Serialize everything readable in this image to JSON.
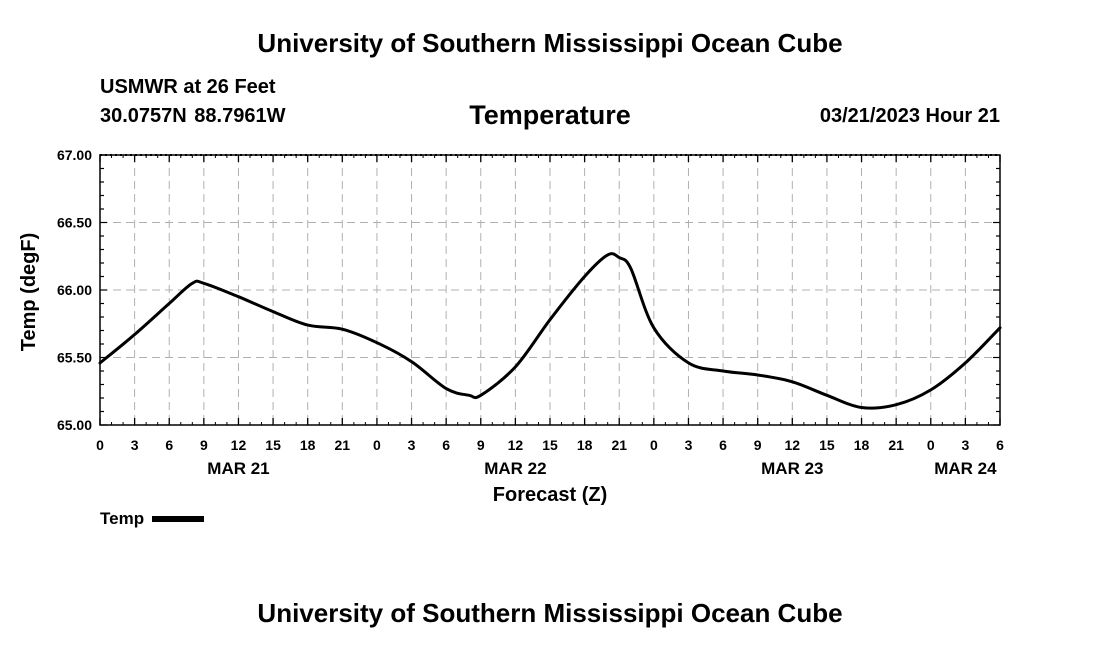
{
  "header": {
    "title": "University of Southern Mississippi Ocean Cube",
    "station": "USMWR at 26 Feet",
    "coords": "30.0757N  88.7961W",
    "subtitle": "Temperature",
    "datehour": "03/21/2023 Hour 21"
  },
  "footer": {
    "title": "University of Southern Mississippi Ocean Cube"
  },
  "legend": {
    "label": "Temp"
  },
  "chart_data": {
    "type": "line",
    "title": "Temperature",
    "xlabel": "Forecast (Z)",
    "ylabel": "Temp (degF)",
    "ylim": [
      65.0,
      67.0
    ],
    "xlim": [
      0,
      78
    ],
    "x_unit": "hours since MAR 21 00Z",
    "x_tick_labels": [
      "0",
      "3",
      "6",
      "9",
      "12",
      "15",
      "18",
      "21",
      "0",
      "3",
      "6",
      "9",
      "12",
      "15",
      "18",
      "21",
      "0",
      "3",
      "6",
      "9",
      "12",
      "15",
      "18",
      "21",
      "0",
      "3",
      "6"
    ],
    "y_tick_labels": [
      "65.00",
      "65.50",
      "66.00",
      "66.50",
      "67.00"
    ],
    "day_labels": [
      {
        "label": "MAR 21",
        "hour": 12
      },
      {
        "label": "MAR 22",
        "hour": 36
      },
      {
        "label": "MAR 23",
        "hour": 60
      },
      {
        "label": "MAR 24",
        "hour": 75
      }
    ],
    "grid": true,
    "legend": "bottom-left",
    "series": [
      {
        "name": "Temp",
        "x": [
          0,
          3,
          6,
          8,
          9,
          12,
          15,
          18,
          21,
          24,
          27,
          30,
          32,
          33,
          36,
          39,
          42,
          44,
          45,
          46,
          48,
          51,
          54,
          57,
          60,
          63,
          66,
          69,
          72,
          75,
          78
        ],
        "values": [
          65.46,
          65.67,
          65.9,
          66.05,
          66.05,
          65.95,
          65.84,
          65.74,
          65.71,
          65.61,
          65.47,
          65.27,
          65.22,
          65.22,
          65.43,
          65.78,
          66.1,
          66.26,
          66.24,
          66.16,
          65.72,
          65.46,
          65.4,
          65.37,
          65.32,
          65.22,
          65.13,
          65.15,
          65.26,
          65.46,
          65.72
        ]
      }
    ]
  }
}
